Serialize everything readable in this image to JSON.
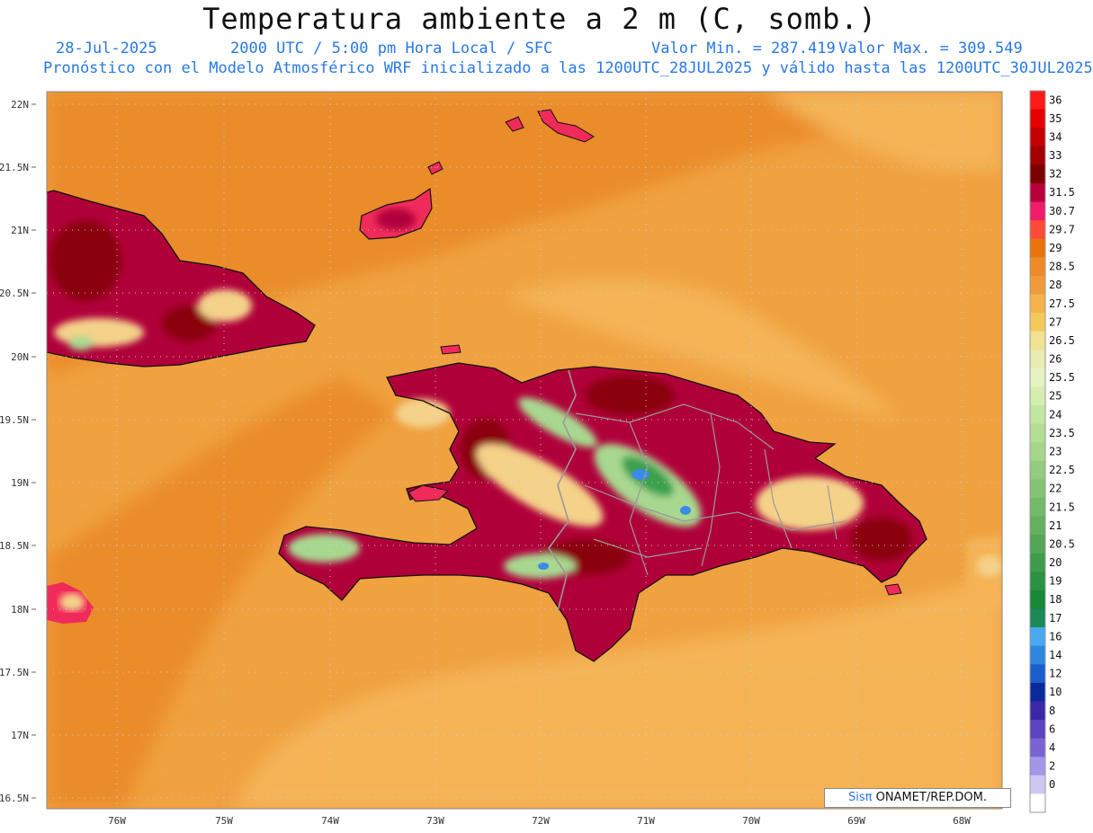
{
  "header": {
    "title": "Temperatura ambiente a 2 m (C, somb.)",
    "date": "28-Jul-2025",
    "time": "2000 UTC / 5:00 pm Hora Local / SFC",
    "min_label": "Valor Min. = 287.419",
    "max_label": "Valor Max. = 309.549",
    "model_line": "Pronóstico con el Modelo Atmosférico WRF inicializado a las 1200UTC_28JUL2025 y válido hasta las  1200UTC_30JUL2025"
  },
  "axes": {
    "lat_labels": [
      "22N",
      "21.5N",
      "21N",
      "20.5N",
      "20N",
      "19.5N",
      "19N",
      "18.5N",
      "18N",
      "17.5N",
      "17N",
      "16.5N"
    ],
    "lon_labels": [
      "76W",
      "75W",
      "74W",
      "73W",
      "72W",
      "71W",
      "70W",
      "69W",
      "68W"
    ]
  },
  "colorbar": {
    "levels": [
      "36",
      "35",
      "34",
      "33",
      "32",
      "31.5",
      "30.7",
      "29.7",
      "29",
      "28.5",
      "28",
      "27.5",
      "27",
      "26.5",
      "26",
      "25.5",
      "25",
      "24",
      "23.5",
      "23",
      "22.5",
      "22",
      "21.5",
      "21",
      "20.5",
      "20",
      "19",
      "18",
      "17",
      "16",
      "14",
      "12",
      "10",
      "8",
      "6",
      "4",
      "2",
      "0"
    ],
    "colors": [
      "#ff1a1a",
      "#e60000",
      "#c40000",
      "#a30000",
      "#7d0000",
      "#b8003a",
      "#f01c6a",
      "#ff4a3a",
      "#e8740a",
      "#ef8a2a",
      "#f09a3c",
      "#f4b44a",
      "#f5c85c",
      "#f0e290",
      "#e9ecb0",
      "#e6f2c4",
      "#d4eeb0",
      "#c2e6a2",
      "#b3de94",
      "#a5d68a",
      "#93cc7e",
      "#82c474",
      "#72ba6a",
      "#62b060",
      "#52a656",
      "#3e9c4c",
      "#2a9242",
      "#168838",
      "#1a8a58",
      "#4aa8f0",
      "#2e86e0",
      "#1a5fcc",
      "#0a2a9c",
      "#3a28a8",
      "#5a44c0",
      "#7a64d4",
      "#a296e8",
      "#cfc8f4",
      "#ffffff"
    ]
  },
  "map": {
    "ocean_color": "#f0a140",
    "ocean_dark_color": "#ea8c2c",
    "ocean_light_color": "#f4b456",
    "land_hot_color": "#b0003a",
    "land_very_hot_color": "#8a0010",
    "land_warm_color": "#f02a5a",
    "land_mild_color": "#f4d28a",
    "land_cool_color": "#a8d890",
    "land_cold_color": "#3aa050",
    "lake_color": "#3a8ae8"
  },
  "credit": {
    "brand": "Sisπ",
    "org": " ONAMET/REP.DOM."
  }
}
